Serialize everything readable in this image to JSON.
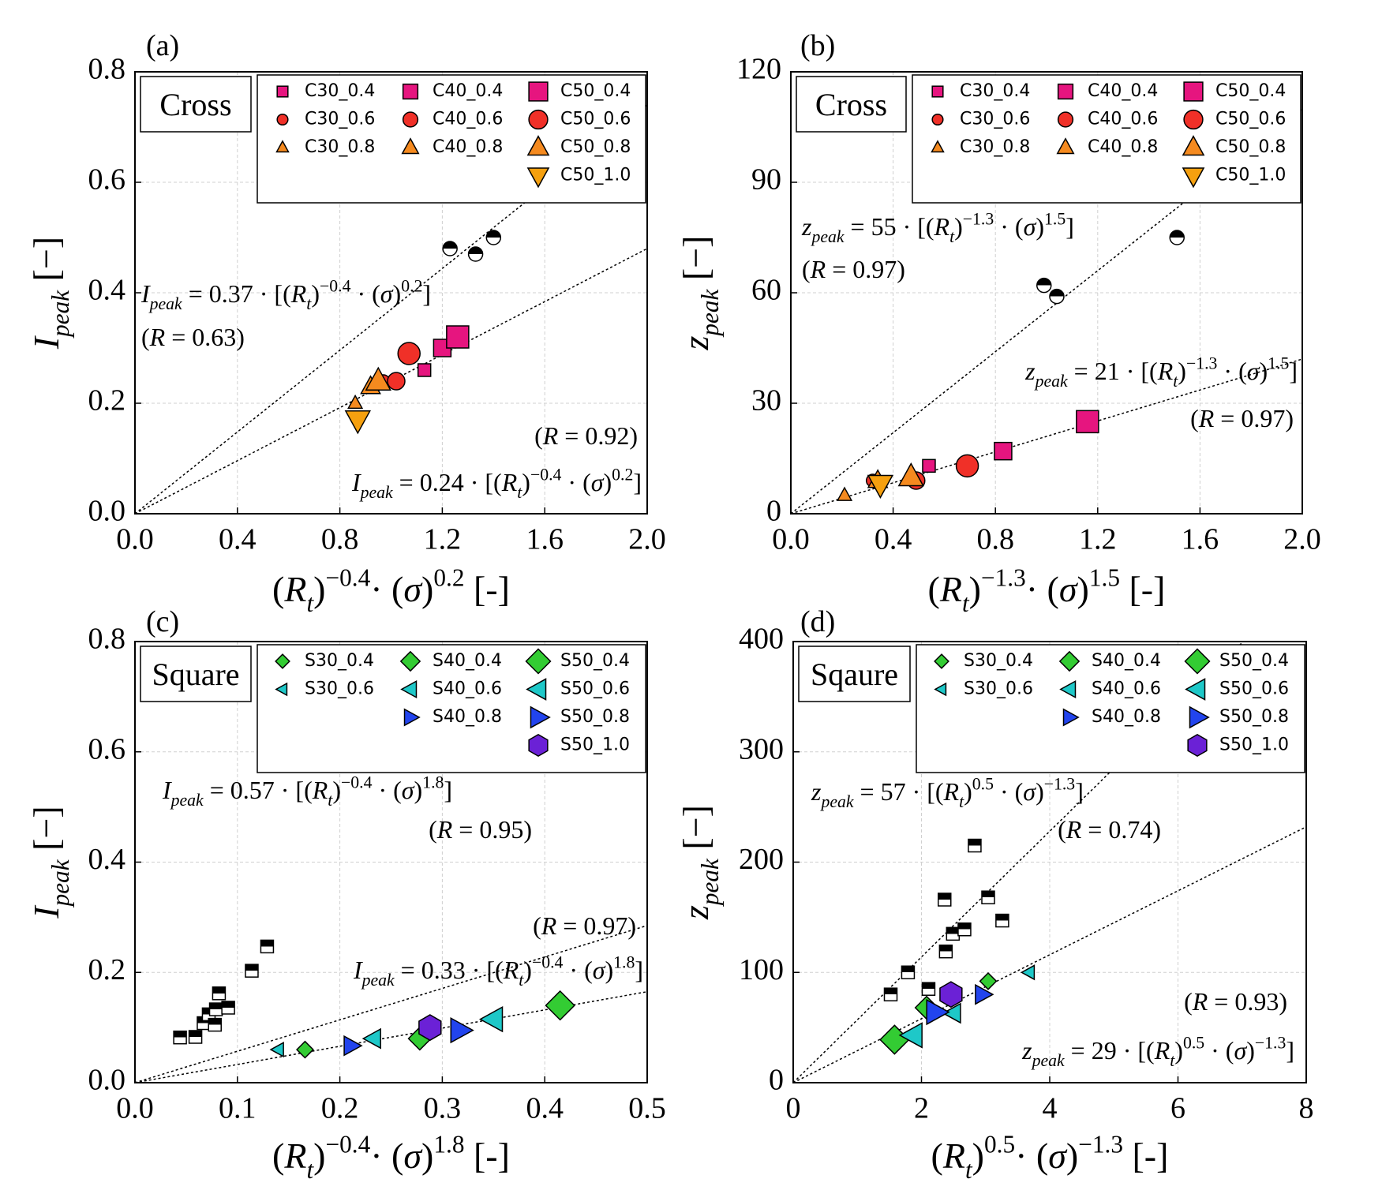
{
  "chart_data": [
    {
      "type": "scatter",
      "panel": "(a)",
      "box_label": "Cross",
      "xlabel": [
        "(",
        {
          "i": "R"
        },
        {
          "sub": "t"
        },
        ")",
        {
          "sup": "−0.4"
        },
        "· (",
        {
          "i": "σ"
        },
        ")",
        {
          "sup": "0.2"
        },
        " [-]"
      ],
      "ylabel": [
        {
          "i": "I"
        },
        {
          "sub": "peak"
        },
        " [−]"
      ],
      "xlim": [
        0,
        2
      ],
      "ylim": [
        0,
        0.8
      ],
      "xticks": [
        {
          "value": 0,
          "label": "0.0"
        },
        0.4,
        0.8,
        1.2,
        1.6,
        {
          "value": 2,
          "label": "2.0"
        }
      ],
      "yticks": [
        {
          "value": 0,
          "label": "0.0"
        },
        0.2,
        0.4,
        0.6,
        0.8
      ],
      "grid": true,
      "series": [
        {
          "name": "C30_0.4",
          "marker": "square",
          "size": 8,
          "color": "#e6157f",
          "x": [
            1.13
          ],
          "values": [
            0.26
          ]
        },
        {
          "name": "C30_0.6",
          "marker": "circle",
          "size": 8,
          "color": "#f03028",
          "x": [
            0.97
          ],
          "values": [
            0.24
          ]
        },
        {
          "name": "C30_0.8",
          "marker": "triangle-up",
          "size": 8,
          "color": "#f58a1f",
          "x": [
            0.86
          ],
          "values": [
            0.2
          ]
        },
        {
          "name": "C40_0.4",
          "marker": "square",
          "size": 11,
          "color": "#e6157f",
          "x": [
            1.2
          ],
          "values": [
            0.3
          ]
        },
        {
          "name": "C40_0.6",
          "marker": "circle",
          "size": 11,
          "color": "#f03028",
          "x": [
            1.02
          ],
          "values": [
            0.24
          ]
        },
        {
          "name": "C40_0.8",
          "marker": "triangle-up",
          "size": 11,
          "color": "#f58a1f",
          "x": [
            0.92
          ],
          "values": [
            0.23
          ]
        },
        {
          "name": "C50_0.4",
          "marker": "square",
          "size": 14,
          "color": "#e6157f",
          "x": [
            1.26
          ],
          "values": [
            0.32
          ]
        },
        {
          "name": "C50_0.6",
          "marker": "circle",
          "size": 14,
          "color": "#f03028",
          "x": [
            1.07
          ],
          "values": [
            0.29
          ]
        },
        {
          "name": "C50_0.8",
          "marker": "triangle-up",
          "size": 14,
          "color": "#f58a1f",
          "x": [
            0.95
          ],
          "values": [
            0.24
          ]
        },
        {
          "name": "C50_1.0",
          "marker": "triangle-down",
          "size": 14,
          "color": "#f5a00f",
          "x": [
            0.87
          ],
          "values": [
            0.17
          ]
        },
        {
          "marker": "half-circle",
          "size": 9,
          "color": "#000",
          "x": [
            1.23,
            1.33,
            1.4
          ],
          "values": [
            0.48,
            0.47,
            0.5
          ]
        }
      ],
      "fits": [
        {
          "slope": 0.37,
          "equation": [
            {
              "i": "I"
            },
            {
              "sub": "peak"
            },
            " = 0.37 · [(",
            {
              "i": "R"
            },
            {
              "sub": "t"
            },
            ")",
            {
              "sup": "−0.4"
            },
            " · (",
            {
              "i": "σ"
            },
            ")",
            {
              "sup": "0.2"
            },
            "]"
          ],
          "r_label": [
            "(",
            {
              "i": "R"
            },
            " = 0.63)"
          ]
        },
        {
          "slope": 0.24,
          "equation": [
            {
              "i": "I"
            },
            {
              "sub": "peak"
            },
            " = 0.24 · [(",
            {
              "i": "R"
            },
            {
              "sub": "t"
            },
            ")",
            {
              "sup": "−0.4"
            },
            " · (",
            {
              "i": "σ"
            },
            ")",
            {
              "sup": "0.2"
            },
            "]"
          ],
          "r_label": [
            "(",
            {
              "i": "R"
            },
            " = 0.92)"
          ]
        }
      ]
    },
    {
      "type": "scatter",
      "panel": "(b)",
      "box_label": "Cross",
      "xlabel": [
        "(",
        {
          "i": "R"
        },
        {
          "sub": "t"
        },
        ")",
        {
          "sup": "−1.3"
        },
        "· (",
        {
          "i": "σ"
        },
        ")",
        {
          "sup": "1.5"
        },
        " [-]"
      ],
      "ylabel": [
        {
          "i": "z"
        },
        {
          "sub": "peak"
        },
        " [−]"
      ],
      "xlim": [
        0,
        2
      ],
      "ylim": [
        0,
        120
      ],
      "xticks": [
        {
          "value": 0,
          "label": "0.0"
        },
        0.4,
        0.8,
        1.2,
        1.6,
        {
          "value": 2,
          "label": "2.0"
        }
      ],
      "yticks": [
        0,
        30,
        60,
        90,
        120
      ],
      "grid": true,
      "series": [
        {
          "name": "C30_0.4",
          "marker": "square",
          "size": 8,
          "color": "#e6157f",
          "x": [
            0.54
          ],
          "values": [
            13
          ]
        },
        {
          "name": "C30_0.6",
          "marker": "circle",
          "size": 8,
          "color": "#f03028",
          "x": [
            0.32
          ],
          "values": [
            9
          ]
        },
        {
          "name": "C30_0.8",
          "marker": "triangle-up",
          "size": 8,
          "color": "#f58a1f",
          "x": [
            0.21
          ],
          "values": [
            5
          ]
        },
        {
          "name": "C40_0.4",
          "marker": "square",
          "size": 11,
          "color": "#e6157f",
          "x": [
            0.83
          ],
          "values": [
            17
          ]
        },
        {
          "name": "C40_0.6",
          "marker": "circle",
          "size": 11,
          "color": "#f03028",
          "x": [
            0.49
          ],
          "values": [
            9
          ]
        },
        {
          "name": "C40_0.8",
          "marker": "triangle-up",
          "size": 11,
          "color": "#f58a1f",
          "x": [
            0.34
          ],
          "values": [
            9
          ]
        },
        {
          "name": "C50_0.4",
          "marker": "square",
          "size": 14,
          "color": "#e6157f",
          "x": [
            1.16
          ],
          "values": [
            25
          ]
        },
        {
          "name": "C50_0.6",
          "marker": "circle",
          "size": 14,
          "color": "#f03028",
          "x": [
            0.69
          ],
          "values": [
            13
          ]
        },
        {
          "name": "C50_0.8",
          "marker": "triangle-up",
          "size": 14,
          "color": "#f58a1f",
          "x": [
            0.47
          ],
          "values": [
            10
          ]
        },
        {
          "name": "C50_1.0",
          "marker": "triangle-down",
          "size": 14,
          "color": "#f5a00f",
          "x": [
            0.35
          ],
          "values": [
            8
          ]
        },
        {
          "marker": "half-circle",
          "size": 9,
          "color": "#000",
          "x": [
            0.99,
            1.04,
            1.51
          ],
          "values": [
            62,
            59,
            75
          ]
        }
      ],
      "fits": [
        {
          "slope": 55,
          "equation": [
            {
              "i": "z"
            },
            {
              "sub": "peak"
            },
            " = 55 · [(",
            {
              "i": "R"
            },
            {
              "sub": "t"
            },
            ")",
            {
              "sup": "−1.3"
            },
            " · (",
            {
              "i": "σ"
            },
            ")",
            {
              "sup": "1.5"
            },
            "]"
          ],
          "r_label": [
            "(",
            {
              "i": "R"
            },
            " = 0.97)"
          ]
        },
        {
          "slope": 21,
          "equation": [
            {
              "i": "z"
            },
            {
              "sub": "peak"
            },
            " = 21 · [(",
            {
              "i": "R"
            },
            {
              "sub": "t"
            },
            ")",
            {
              "sup": "−1.3"
            },
            " · (",
            {
              "i": "σ"
            },
            ")",
            {
              "sup": "1.5"
            },
            "]"
          ],
          "r_label": [
            "(",
            {
              "i": "R"
            },
            " = 0.97)"
          ]
        }
      ]
    },
    {
      "type": "scatter",
      "panel": "(c)",
      "box_label": "Square",
      "xlabel": [
        "(",
        {
          "i": "R"
        },
        {
          "sub": "t"
        },
        ")",
        {
          "sup": "−0.4"
        },
        "· (",
        {
          "i": "σ"
        },
        ")",
        {
          "sup": "1.8"
        },
        " [-]"
      ],
      "ylabel": [
        {
          "i": "I"
        },
        {
          "sub": "peak"
        },
        " [−]"
      ],
      "xlim": [
        0,
        0.5
      ],
      "ylim": [
        0,
        0.8
      ],
      "xticks": [
        {
          "value": 0,
          "label": "0.0"
        },
        0.1,
        0.2,
        0.3,
        0.4,
        0.5
      ],
      "yticks": [
        {
          "value": 0,
          "label": "0.0"
        },
        0.2,
        0.4,
        0.6,
        0.8
      ],
      "grid": true,
      "series": [
        {
          "name": "S30_0.4",
          "marker": "diamond",
          "size": 8,
          "color": "#33cc33",
          "x": [
            0.166
          ],
          "values": [
            0.06
          ]
        },
        {
          "name": "S30_0.6",
          "marker": "triangle-left",
          "size": 8,
          "color": "#1ec8c8",
          "x": [
            0.14
          ],
          "values": [
            0.06
          ]
        },
        {
          "name": "S40_0.4",
          "marker": "diamond",
          "size": 11,
          "color": "#33cc33",
          "x": [
            0.278
          ],
          "values": [
            0.08
          ]
        },
        {
          "name": "S40_0.6",
          "marker": "triangle-left",
          "size": 11,
          "color": "#1ec8c8",
          "x": [
            0.233
          ],
          "values": [
            0.08
          ]
        },
        {
          "name": "S40_0.8",
          "marker": "triangle-right",
          "size": 11,
          "color": "#2244ee",
          "x": [
            0.211
          ],
          "values": [
            0.067
          ]
        },
        {
          "name": "S50_0.4",
          "marker": "diamond",
          "size": 14,
          "color": "#33cc33",
          "x": [
            0.415
          ],
          "values": [
            0.14
          ]
        },
        {
          "name": "S50_0.6",
          "marker": "triangle-left",
          "size": 14,
          "color": "#1ec8c8",
          "x": [
            0.35
          ],
          "values": [
            0.115
          ]
        },
        {
          "name": "S50_0.8",
          "marker": "triangle-right",
          "size": 14,
          "color": "#2244ee",
          "x": [
            0.317
          ],
          "values": [
            0.095
          ]
        },
        {
          "name": "S50_1.0",
          "marker": "hexagon",
          "size": 14,
          "color": "#6b21d6",
          "x": [
            0.288
          ],
          "values": [
            0.1
          ]
        },
        {
          "marker": "half-square",
          "size": 8,
          "color": "#000",
          "x": [
            0.044,
            0.059,
            0.067,
            0.072,
            0.078,
            0.079,
            0.082,
            0.091,
            0.114,
            0.129
          ],
          "values": [
            0.082,
            0.083,
            0.108,
            0.124,
            0.105,
            0.133,
            0.162,
            0.136,
            0.203,
            0.247
          ]
        }
      ],
      "fits": [
        {
          "slope": 0.57,
          "equation": [
            {
              "i": "I"
            },
            {
              "sub": "peak"
            },
            " = 0.57 · [(",
            {
              "i": "R"
            },
            {
              "sub": "t"
            },
            ")",
            {
              "sup": "−0.4"
            },
            " · (",
            {
              "i": "σ"
            },
            ")",
            {
              "sup": "1.8"
            },
            "]"
          ],
          "r_label": [
            "(",
            {
              "i": "R"
            },
            " = 0.95)"
          ]
        },
        {
          "slope": 0.33,
          "equation": [
            {
              "i": "I"
            },
            {
              "sub": "peak"
            },
            " = 0.33 · [(",
            {
              "i": "R"
            },
            {
              "sub": "t"
            },
            ")",
            {
              "sup": "−0.4"
            },
            " · (",
            {
              "i": "σ"
            },
            ")",
            {
              "sup": "1.8"
            },
            "]"
          ],
          "r_label": [
            "(",
            {
              "i": "R"
            },
            " = 0.97)"
          ]
        }
      ]
    },
    {
      "type": "scatter",
      "panel": "(d)",
      "box_label": "Sqaure",
      "xlabel": [
        "(",
        {
          "i": "R"
        },
        {
          "sub": "t"
        },
        ")",
        {
          "sup": "0.5"
        },
        "· (",
        {
          "i": "σ"
        },
        ")",
        {
          "sup": "−1.3"
        },
        " [-]"
      ],
      "ylabel": [
        {
          "i": "z"
        },
        {
          "sub": "peak"
        },
        " [−]"
      ],
      "xlim": [
        0,
        8
      ],
      "ylim": [
        0,
        400
      ],
      "xticks": [
        0,
        2,
        4,
        6,
        8
      ],
      "yticks": [
        0,
        100,
        200,
        300,
        400
      ],
      "grid": true,
      "series": [
        {
          "name": "S30_0.4",
          "marker": "diamond",
          "size": 8,
          "color": "#33cc33",
          "x": [
            3.04
          ],
          "values": [
            92
          ]
        },
        {
          "name": "S30_0.6",
          "marker": "triangle-left",
          "size": 8,
          "color": "#1ec8c8",
          "x": [
            3.68
          ],
          "values": [
            100
          ]
        },
        {
          "name": "S40_0.4",
          "marker": "diamond",
          "size": 11,
          "color": "#33cc33",
          "x": [
            2.08
          ],
          "values": [
            68
          ]
        },
        {
          "name": "S40_0.6",
          "marker": "triangle-left",
          "size": 11,
          "color": "#1ec8c8",
          "x": [
            2.5
          ],
          "values": [
            63
          ]
        },
        {
          "name": "S40_0.8",
          "marker": "triangle-right",
          "size": 11,
          "color": "#2244ee",
          "x": [
            2.95
          ],
          "values": [
            80
          ]
        },
        {
          "name": "S50_0.4",
          "marker": "diamond",
          "size": 14,
          "color": "#33cc33",
          "x": [
            1.58
          ],
          "values": [
            39
          ]
        },
        {
          "name": "S50_0.6",
          "marker": "triangle-left",
          "size": 14,
          "color": "#1ec8c8",
          "x": [
            1.87
          ],
          "values": [
            43
          ]
        },
        {
          "name": "S50_0.8",
          "marker": "triangle-right",
          "size": 14,
          "color": "#2244ee",
          "x": [
            2.22
          ],
          "values": [
            64
          ]
        },
        {
          "name": "S50_1.0",
          "marker": "hexagon",
          "size": 14,
          "color": "#6b21d6",
          "x": [
            2.46
          ],
          "values": [
            80
          ]
        },
        {
          "marker": "half-square",
          "size": 8,
          "color": "#000",
          "x": [
            1.52,
            1.79,
            2.11,
            2.38,
            2.36,
            2.49,
            2.67,
            2.83,
            3.04,
            3.26
          ],
          "values": [
            80,
            100,
            85,
            119,
            166,
            135,
            139,
            215,
            168,
            147
          ]
        }
      ],
      "fits": [
        {
          "slope": 57,
          "equation": [
            {
              "i": "z"
            },
            {
              "sub": "peak"
            },
            " = 57 · [(",
            {
              "i": "R"
            },
            {
              "sub": "t"
            },
            ")",
            {
              "sup": "0.5"
            },
            " · (",
            {
              "i": "σ"
            },
            ")",
            {
              "sup": "−1.3"
            },
            "]"
          ],
          "r_label": [
            "(",
            {
              "i": "R"
            },
            " = 0.74)"
          ]
        },
        {
          "slope": 29,
          "equation": [
            {
              "i": "z"
            },
            {
              "sub": "peak"
            },
            " = 29 · [(",
            {
              "i": "R"
            },
            {
              "sub": "t"
            },
            ")",
            {
              "sup": "0.5"
            },
            " · (",
            {
              "i": "σ"
            },
            ")",
            {
              "sup": "−1.3"
            },
            "]"
          ],
          "r_label": [
            "(",
            {
              "i": "R"
            },
            " = 0.93)"
          ]
        }
      ]
    }
  ]
}
